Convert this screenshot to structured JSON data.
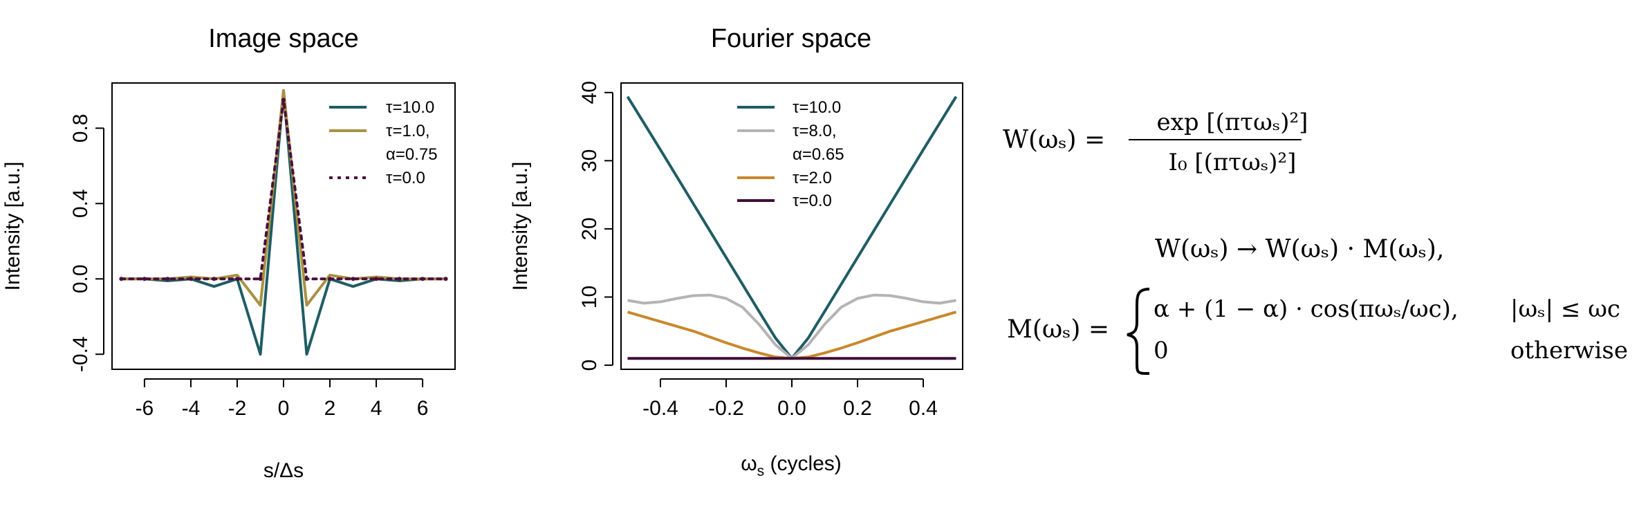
{
  "colors": {
    "teal": "#1f5d63",
    "gold": "#a89142",
    "purple": "#4a0f3d",
    "gray": "#b4b4b4",
    "orange": "#c8882a",
    "dark": "#3e0d3a"
  },
  "chart_data": [
    {
      "type": "line",
      "title": "Image space",
      "xlabel": "s/Δs",
      "ylabel": "Intensity [a.u.]",
      "xlim": [
        -7.4,
        7.4
      ],
      "ylim": [
        -0.48,
        1.04
      ],
      "xticks": [
        -6,
        -4,
        -2,
        0,
        2,
        4,
        6
      ],
      "xtick_labels": [
        "-6",
        "-4",
        "-2",
        "0",
        "2",
        "4",
        "6"
      ],
      "yticks": [
        -0.4,
        0.0,
        0.4,
        0.8
      ],
      "ytick_labels": [
        "-0.4",
        "0.0",
        "0.4",
        "0.8"
      ],
      "grid": false,
      "legend_position": "top-right",
      "legend_entries": [
        "τ=10.0",
        "τ=1.0,",
        "α=0.75",
        "τ=0.0"
      ],
      "series": [
        {
          "name": "τ=10.0",
          "color": "teal",
          "style": "solid",
          "x": [
            -7,
            -6,
            -5,
            -4,
            -3,
            -2,
            -1,
            0,
            1,
            2,
            3,
            4,
            5,
            6,
            7
          ],
          "y": [
            0.0,
            0.0,
            -0.01,
            0.0,
            -0.04,
            0.0,
            -0.4,
            1.0,
            -0.4,
            0.0,
            -0.04,
            0.0,
            -0.01,
            0.0,
            0.0
          ]
        },
        {
          "name": "τ=1.0, α=0.75",
          "color": "gold",
          "style": "solid",
          "x": [
            -7,
            -6,
            -5,
            -4,
            -3,
            -2,
            -1,
            0,
            1,
            2,
            3,
            4,
            5,
            6,
            7
          ],
          "y": [
            0.0,
            0.0,
            0.0,
            0.01,
            0.0,
            0.02,
            -0.14,
            1.0,
            -0.14,
            0.02,
            0.0,
            0.01,
            0.0,
            0.0,
            0.0
          ]
        },
        {
          "name": "τ=0.0",
          "color": "purple",
          "style": "dotted",
          "x": [
            -7,
            -6,
            -5,
            -4,
            -3,
            -2,
            -1,
            0,
            1,
            2,
            3,
            4,
            5,
            6,
            7
          ],
          "y": [
            0,
            0,
            0,
            0,
            0,
            0,
            0,
            0.95,
            0,
            0,
            0,
            0,
            0,
            0,
            0
          ]
        }
      ]
    },
    {
      "type": "line",
      "title": "Fourier space",
      "xlabel": "ωs (cycles)",
      "ylabel": "Intensity [a.u.]",
      "xlim": [
        -0.52,
        0.52
      ],
      "ylim": [
        -0.6,
        41.4
      ],
      "xticks": [
        -0.4,
        -0.2,
        0.0,
        0.2,
        0.4
      ],
      "xtick_labels": [
        "-0.4",
        "-0.2",
        "0.0",
        "0.2",
        "0.4"
      ],
      "yticks": [
        0,
        10,
        20,
        30,
        40
      ],
      "ytick_labels": [
        "0",
        "10",
        "20",
        "30",
        "40"
      ],
      "grid": false,
      "legend_position": "top-center",
      "legend_entries": [
        "τ=10.0",
        "τ=8.0,",
        "α=0.65",
        "τ=2.0",
        "τ=0.0"
      ],
      "series": [
        {
          "name": "τ=10.0",
          "color": "teal",
          "x": [
            -0.5,
            -0.4,
            -0.3,
            -0.2,
            -0.1,
            -0.05,
            0.0,
            0.05,
            0.1,
            0.2,
            0.3,
            0.4,
            0.5
          ],
          "y": [
            39.4,
            31.6,
            23.7,
            15.8,
            7.9,
            4.0,
            1.0,
            4.0,
            7.9,
            15.8,
            23.7,
            31.6,
            39.4
          ]
        },
        {
          "name": "τ=8.0, α=0.65",
          "color": "gray",
          "x": [
            -0.5,
            -0.45,
            -0.4,
            -0.35,
            -0.3,
            -0.25,
            -0.2,
            -0.15,
            -0.1,
            -0.05,
            0.0,
            0.05,
            0.1,
            0.15,
            0.2,
            0.25,
            0.3,
            0.35,
            0.4,
            0.45,
            0.5
          ],
          "y": [
            9.5,
            9.1,
            9.3,
            9.8,
            10.2,
            10.3,
            9.8,
            8.5,
            6.0,
            3.0,
            1.0,
            3.0,
            6.0,
            8.5,
            9.8,
            10.3,
            10.2,
            9.8,
            9.3,
            9.1,
            9.5
          ]
        },
        {
          "name": "τ=2.0",
          "color": "orange",
          "x": [
            -0.5,
            -0.4,
            -0.3,
            -0.2,
            -0.15,
            -0.1,
            -0.05,
            0.0,
            0.05,
            0.1,
            0.15,
            0.2,
            0.3,
            0.4,
            0.5
          ],
          "y": [
            7.8,
            6.4,
            5.0,
            3.3,
            2.5,
            1.8,
            1.2,
            1.0,
            1.2,
            1.8,
            2.5,
            3.3,
            5.0,
            6.4,
            7.8
          ]
        },
        {
          "name": "τ=0.0",
          "color": "dark",
          "x": [
            -0.5,
            0.5
          ],
          "y": [
            1.0,
            1.0
          ]
        }
      ]
    }
  ],
  "equations": {
    "w_lhs": "W(ωₛ) =",
    "w_num": "exp [(πτωₛ)²]",
    "w_den": "I₀ [(πτωₛ)²]",
    "map": "W(ωₛ) → W(ωₛ) · M(ωₛ),",
    "m_lhs": "M(ωₛ) =",
    "case1": "α + (1 − α) · cos(πωₛ/ωc),",
    "case1_cond": "|ωₛ| ≤ ωc",
    "case2": "0",
    "case2_cond": "otherwise"
  }
}
